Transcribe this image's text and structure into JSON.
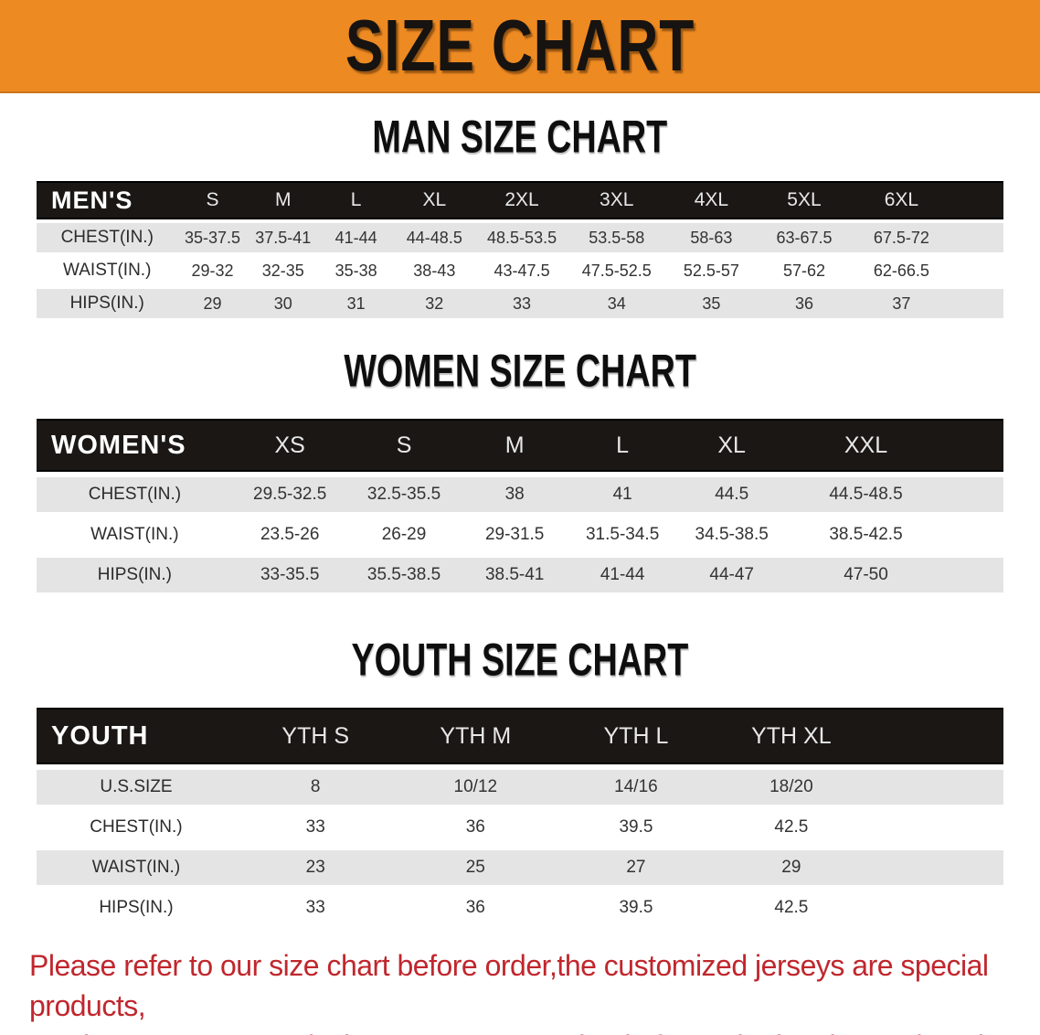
{
  "banner": {
    "title": "SIZE CHART"
  },
  "colors": {
    "banner_bg": "#EE8A22",
    "banner_text": "#161310",
    "header_bg": "#1A1715",
    "header_text": "#FFFFFF",
    "row_gray": "#E4E4E4",
    "data_text": "#333333",
    "footer_text": "#C0272D"
  },
  "sections": [
    {
      "id": "men",
      "title": "MAN SIZE CHART",
      "header": [
        "MEN'S",
        "S",
        "M",
        "L",
        "XL",
        "2XL",
        "3XL",
        "4XL",
        "5XL",
        "6XL"
      ],
      "rows": [
        {
          "label": "CHEST(IN.)",
          "values": [
            "35-37.5",
            "37.5-41",
            "41-44",
            "44-48.5",
            "48.5-53.5",
            "53.5-58",
            "58-63",
            "63-67.5",
            "67.5-72"
          ]
        },
        {
          "label": "WAIST(IN.)",
          "values": [
            "29-32",
            "32-35",
            "35-38",
            "38-43",
            "43-47.5",
            "47.5-52.5",
            "52.5-57",
            "57-62",
            "62-66.5"
          ]
        },
        {
          "label": "HIPS(IN.)",
          "values": [
            "29",
            "30",
            "31",
            "32",
            "33",
            "34",
            "35",
            "36",
            "37"
          ]
        }
      ]
    },
    {
      "id": "women",
      "title": "WOMEN SIZE CHART",
      "header": [
        "WOMEN'S",
        "XS",
        "S",
        "M",
        "L",
        "XL",
        "XXL"
      ],
      "rows": [
        {
          "label": "CHEST(IN.)",
          "values": [
            "29.5-32.5",
            "32.5-35.5",
            "38",
            "41",
            "44.5",
            "44.5-48.5"
          ]
        },
        {
          "label": "WAIST(IN.)",
          "values": [
            "23.5-26",
            "26-29",
            "29-31.5",
            "31.5-34.5",
            "34.5-38.5",
            "38.5-42.5"
          ]
        },
        {
          "label": "HIPS(IN.)",
          "values": [
            "33-35.5",
            "35.5-38.5",
            "38.5-41",
            "41-44",
            "44-47",
            "47-50"
          ]
        }
      ]
    },
    {
      "id": "youth",
      "title": "YOUTH SIZE CHART",
      "header": [
        "YOUTH",
        "YTH S",
        "YTH M",
        "YTH L",
        "YTH XL"
      ],
      "rows": [
        {
          "label": "U.S.SIZE",
          "values": [
            "8",
            "10/12",
            "14/16",
            "18/20"
          ]
        },
        {
          "label": "CHEST(IN.)",
          "values": [
            "33",
            "36",
            "39.5",
            "42.5"
          ]
        },
        {
          "label": "WAIST(IN.)",
          "values": [
            "23",
            "25",
            "27",
            "29"
          ]
        },
        {
          "label": "HIPS(IN.)",
          "values": [
            "33",
            "36",
            "39.5",
            "42.5"
          ]
        }
      ]
    }
  ],
  "footer": {
    "line1": "Please refer to our size chart before order,the customized jerseys are special products,",
    "line2": "we don't accept cancel, change, teturn or refund after order has been placed!"
  }
}
